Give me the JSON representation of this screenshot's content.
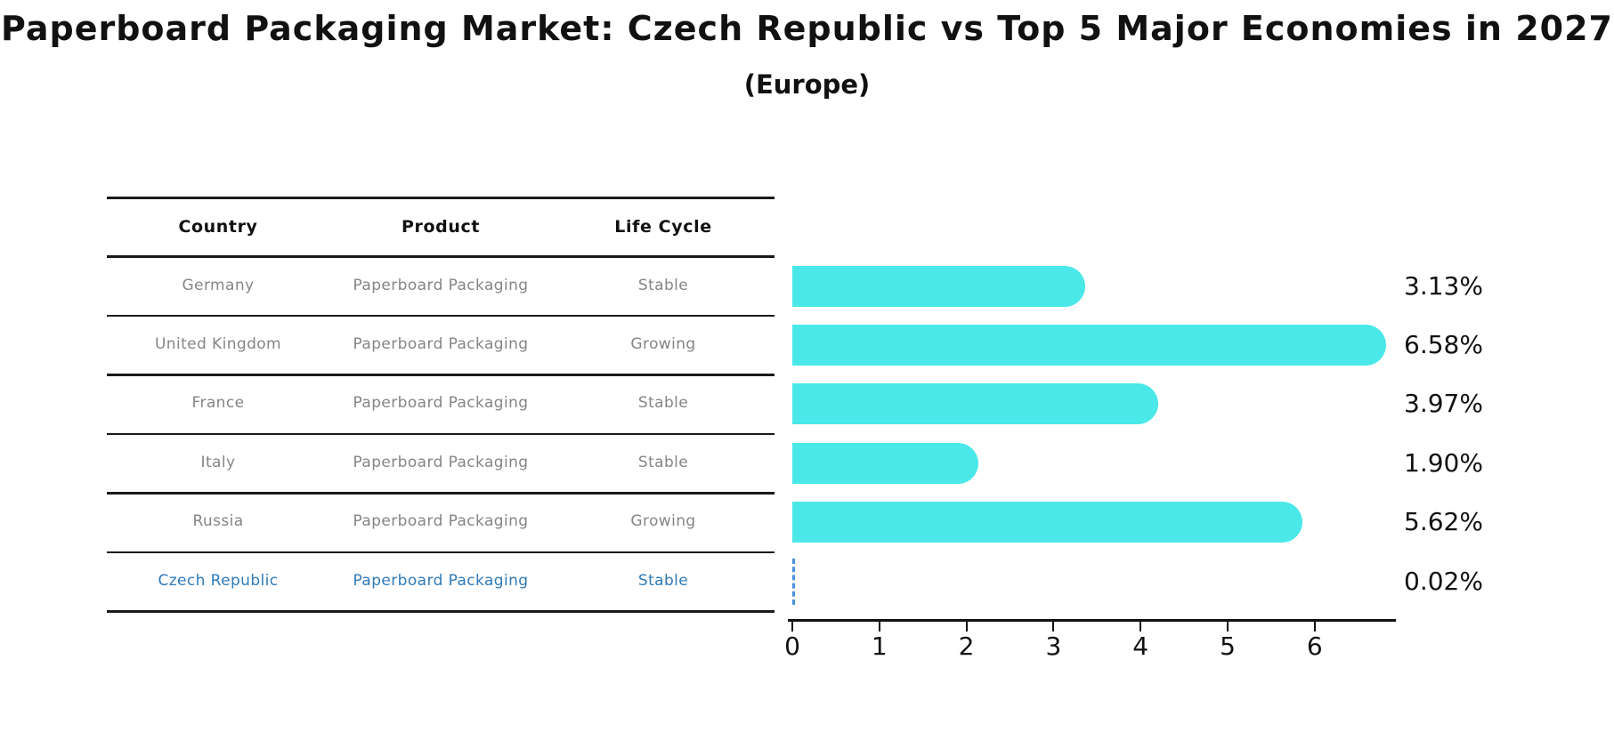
{
  "page": {
    "title": "Paperboard Packaging Market: Czech Republic vs Top 5 Major Economies in 2027",
    "subtitle": "(Europe)"
  },
  "table": {
    "headers": [
      "Country",
      "Product",
      "Life Cycle"
    ],
    "rows": [
      {
        "country": "Germany",
        "product": "Paperboard Packaging",
        "life_cycle": "Stable",
        "highlighted": false
      },
      {
        "country": "United Kingdom",
        "product": "Paperboard Packaging",
        "life_cycle": "Growing",
        "highlighted": false
      },
      {
        "country": "France",
        "product": "Paperboard Packaging",
        "life_cycle": "Stable",
        "highlighted": false
      },
      {
        "country": "Italy",
        "product": "Paperboard Packaging",
        "life_cycle": "Stable",
        "highlighted": false
      },
      {
        "country": "Russia",
        "product": "Paperboard Packaging",
        "life_cycle": "Growing",
        "highlighted": false
      },
      {
        "country": "Czech Republic",
        "product": "Paperboard Packaging",
        "life_cycle": "Stable",
        "highlighted": true
      }
    ]
  },
  "chart_data": {
    "type": "bar",
    "orientation": "horizontal",
    "title": "Paperboard Packaging Market: Czech Republic vs Top 5 Major Economies in 2027 (Europe)",
    "categories": [
      "Germany",
      "United Kingdom",
      "France",
      "Italy",
      "Russia",
      "Czech Republic"
    ],
    "values": [
      3.13,
      6.58,
      3.97,
      1.9,
      5.62,
      0.02
    ],
    "value_labels": [
      "3.13%",
      "6.58%",
      "3.97%",
      "1.90%",
      "5.62%",
      "0.02%"
    ],
    "units": "%",
    "xlabel": "",
    "ylabel": "",
    "xlim": [
      0,
      6.93
    ],
    "x_ticks": [
      0,
      1,
      2,
      3,
      4,
      5,
      6
    ],
    "grid": false,
    "legend": false,
    "bar_color": "#4AE8E8",
    "highlight_bar_style": "thin dashed blue line for near-zero value",
    "highlight_bar_color": "#4A90D9"
  },
  "colors": {
    "background": "#FFFFFF",
    "bar": "#4AE8E8",
    "highlight_text": "#2F7AB8",
    "highlight_bar": "#4A90D9",
    "table_text": "#858585",
    "header_text": "#111111",
    "axis": "#111111"
  }
}
